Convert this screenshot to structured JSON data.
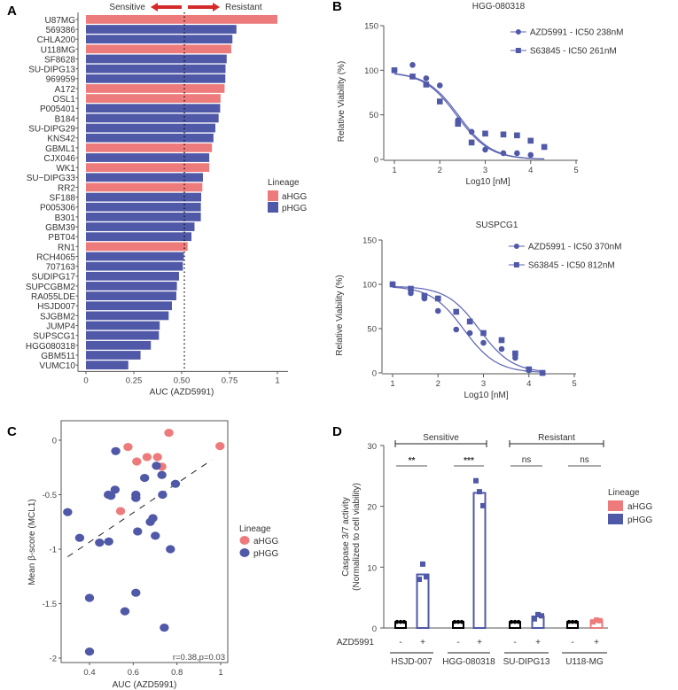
{
  "colors": {
    "aHGG": "#ee7b7b",
    "pHGG": "#5058a8",
    "curve": "#5a62b0"
  },
  "chart_data": [
    {
      "panel": "A",
      "type": "bar",
      "orientation": "horizontal",
      "xlabel": "AUC (AZD5991)",
      "xlim": [
        0,
        1
      ],
      "xticks": [
        "0",
        "0.25",
        "0.50",
        "0.75",
        "1"
      ],
      "threshold": 0.514,
      "annotation_left": "Sensitive",
      "annotation_right": "Resistant",
      "legend": {
        "title": "Lineage",
        "entries": [
          "aHGG",
          "pHGG"
        ],
        "placement": "right"
      },
      "categories": [
        "U87MG",
        "569386",
        "CHLA200",
        "U118MG",
        "SF8628",
        "SU-DIPG13",
        "969959",
        "A172",
        "OSL1",
        "P005401",
        "B184",
        "SU-DIPG29",
        "KNS42",
        "GBML1",
        "CJX046",
        "WK1",
        "SU−DIPG33",
        "RR2",
        "SF188",
        "P005306",
        "B301",
        "GBM39",
        "PBT04",
        "RN1",
        "RCH4065",
        "707163",
        "SUDIPG17",
        "SUPCGBM2",
        "RA055LDE",
        "HSJD007",
        "SJGBM2",
        "JUMP4",
        "SUPSCG1",
        "HGG080318",
        "GBM511",
        "VUMC10"
      ],
      "values": [
        1.0,
        0.786,
        0.765,
        0.759,
        0.735,
        0.729,
        0.728,
        0.724,
        0.703,
        0.701,
        0.693,
        0.676,
        0.666,
        0.658,
        0.644,
        0.644,
        0.611,
        0.608,
        0.602,
        0.6,
        0.6,
        0.567,
        0.551,
        0.531,
        0.511,
        0.506,
        0.486,
        0.475,
        0.472,
        0.449,
        0.432,
        0.385,
        0.381,
        0.339,
        0.285,
        0.221
      ],
      "lineage": [
        "aHGG",
        "pHGG",
        "pHGG",
        "aHGG",
        "pHGG",
        "pHGG",
        "pHGG",
        "aHGG",
        "aHGG",
        "pHGG",
        "pHGG",
        "pHGG",
        "pHGG",
        "aHGG",
        "pHGG",
        "aHGG",
        "pHGG",
        "aHGG",
        "pHGG",
        "pHGG",
        "pHGG",
        "pHGG",
        "pHGG",
        "aHGG",
        "pHGG",
        "pHGG",
        "pHGG",
        "pHGG",
        "pHGG",
        "pHGG",
        "pHGG",
        "pHGG",
        "pHGG",
        "pHGG",
        "pHGG",
        "pHGG"
      ]
    },
    {
      "panel": "B",
      "type": "line",
      "title": "HGG-080318",
      "xlabel": "Log10 [nM]",
      "ylabel": "Relative Viability (%)",
      "xlim": [
        1,
        5
      ],
      "ylim": [
        0,
        150
      ],
      "xticks": [
        "1",
        "2",
        "3",
        "4",
        "5"
      ],
      "yticks": [
        "0",
        "50",
        "100",
        "150"
      ],
      "series": [
        {
          "name": "AZD5991 - IC50 238nM",
          "ic50_nM": 238,
          "marker": "circle",
          "x": [
            1,
            1.4,
            1.7,
            2,
            2.4,
            2.7,
            3,
            3.4,
            3.7,
            4
          ],
          "y": [
            100,
            106,
            91,
            83,
            44,
            31,
            11,
            7,
            7,
            5
          ]
        },
        {
          "name": "S63845 - IC50 261nM",
          "ic50_nM": 261,
          "marker": "square",
          "x": [
            1,
            1.4,
            1.7,
            2,
            2.4,
            2.7,
            3,
            3.4,
            3.7,
            4,
            4.3
          ],
          "y": [
            100,
            93,
            84,
            65,
            40,
            19,
            29,
            28,
            27,
            21,
            14
          ]
        }
      ]
    },
    {
      "panel": "B2",
      "type": "line",
      "title": "SUSPCG1",
      "xlabel": "Log10 [nM]",
      "ylabel": "Relative Viability (%)",
      "xlim": [
        1,
        5
      ],
      "ylim": [
        0,
        150
      ],
      "xticks": [
        "1",
        "2",
        "3",
        "4",
        "5"
      ],
      "yticks": [
        "0",
        "50",
        "100",
        "150"
      ],
      "series": [
        {
          "name": "AZD5991 - IC50 370nM",
          "ic50_nM": 370,
          "marker": "circle",
          "x": [
            1,
            1.4,
            1.7,
            2,
            2.4,
            2.7,
            3,
            3.4,
            3.7,
            4,
            4.3
          ],
          "y": [
            100,
            90,
            84,
            70,
            49,
            45,
            34,
            27,
            17,
            3,
            0
          ]
        },
        {
          "name": "S63845 - IC50 812nM",
          "ic50_nM": 812,
          "marker": "square",
          "x": [
            1,
            1.4,
            1.7,
            2,
            2.4,
            2.7,
            3,
            3.4,
            3.7,
            4,
            4.3
          ],
          "y": [
            100,
            95,
            87,
            84,
            69,
            58,
            45,
            37,
            22,
            4,
            0
          ]
        }
      ]
    },
    {
      "panel": "C",
      "type": "scatter",
      "xlabel": "AUC (AZD5991)",
      "ylabel": "Mean β-score (MCL1)",
      "xlim": [
        0.27,
        1.02
      ],
      "ylim": [
        -2.07,
        0.15
      ],
      "xticks": [
        "0.4",
        "0.6",
        "0.8",
        "1"
      ],
      "yticks": [
        "0",
        "-0.5",
        "-1",
        "-1.5",
        "-2"
      ],
      "annotation": "r=0.38,p=0.03",
      "trendline": {
        "x": [
          0.3,
          0.96
        ],
        "y": [
          -1.07,
          -0.18
        ]
      },
      "legend": {
        "title": "Lineage",
        "entries": [
          "aHGG",
          "pHGG"
        ],
        "placement": "right"
      },
      "series": [
        {
          "name": "aHGG",
          "x": [
            0.763,
            0.576,
            0.997,
            0.616,
            0.663,
            0.711,
            0.731,
            0.542
          ],
          "y": [
            0.068,
            -0.062,
            -0.054,
            -0.195,
            -0.154,
            -0.154,
            -0.243,
            -0.65
          ]
        },
        {
          "name": "pHGG",
          "x": [
            0.52,
            0.706,
            0.731,
            0.652,
            0.793,
            0.517,
            0.486,
            0.498,
            0.612,
            0.612,
            0.734,
            0.3,
            0.69,
            0.678,
            0.62,
            0.355,
            0.701,
            0.446,
            0.488,
            0.77,
            0.4,
            0.612,
            0.562,
            0.742,
            0.4
          ],
          "y": [
            -0.1,
            -0.235,
            -0.319,
            -0.346,
            -0.4,
            -0.454,
            -0.5,
            -0.51,
            -0.5,
            -0.53,
            -0.5,
            -0.66,
            -0.715,
            -0.75,
            -0.837,
            -0.896,
            -0.877,
            -0.94,
            -0.93,
            -1.0,
            -1.447,
            -1.4,
            -1.57,
            -1.72,
            -1.94
          ]
        }
      ]
    },
    {
      "panel": "D",
      "type": "bar",
      "ylabel": "Caspase 3/7 activity",
      "ylabel2": "(Normalized to cell viability)",
      "ylim": [
        0,
        30
      ],
      "yticks": [
        "0",
        "10",
        "20",
        "30"
      ],
      "treatment_label": "AZD5991",
      "treatment_marks": [
        "-",
        "+"
      ],
      "groups": [
        {
          "label": "HSJD-007",
          "lineage": "pHGG",
          "minus": [
            1,
            1,
            1
          ],
          "plus": [
            8.0,
            10.5,
            8.4
          ],
          "mean_plus": 8.8,
          "sig": "**"
        },
        {
          "label": "HGG-080318",
          "lineage": "pHGG",
          "minus": [
            1,
            1,
            1
          ],
          "plus": [
            24.2,
            22.4,
            20.1
          ],
          "mean_plus": 22.2,
          "sig": "***"
        },
        {
          "label": "SU-DIPG13",
          "lineage": "pHGG",
          "minus": [
            1,
            1,
            1
          ],
          "plus": [
            1.5,
            2.2,
            2.0
          ],
          "mean_plus": 1.9,
          "sig": "ns"
        },
        {
          "label": "U118-MG",
          "lineage": "aHGG",
          "minus": [
            1,
            1,
            1
          ],
          "plus": [
            1.0,
            1.3,
            1.2
          ],
          "mean_plus": 1.2,
          "sig": "ns"
        }
      ],
      "brackets": [
        {
          "label": "Sensitive",
          "groups": [
            0,
            1
          ]
        },
        {
          "label": "Resistant",
          "groups": [
            2,
            3
          ]
        }
      ],
      "legend": {
        "title": "Lineage",
        "entries": [
          "aHGG",
          "pHGG"
        ],
        "placement": "right"
      }
    }
  ],
  "panel_labels": [
    "A",
    "B",
    "C",
    "D"
  ]
}
